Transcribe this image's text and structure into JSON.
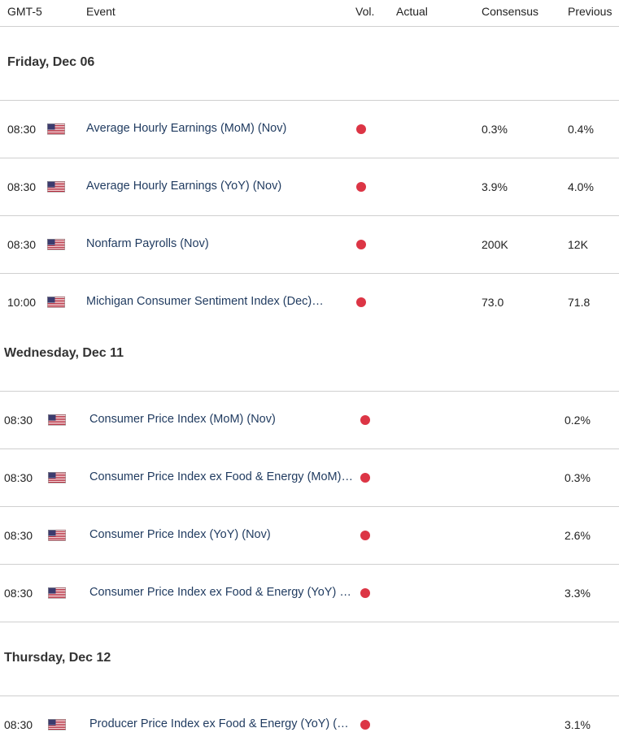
{
  "header": {
    "timezone": "GMT-5",
    "event": "Event",
    "vol": "Vol.",
    "actual": "Actual",
    "consensus": "Consensus",
    "previous": "Previous"
  },
  "colors": {
    "vol_high": "#dc3545",
    "event_text": "#1f3a5f",
    "divider": "#cfcfcf"
  },
  "days": [
    {
      "label": "Friday, Dec 06"
    },
    {
      "label": "Wednesday, Dec 11"
    },
    {
      "label": "Thursday, Dec 12"
    }
  ],
  "rows": [
    {
      "time": "08:30",
      "event": "Average Hourly Earnings (MoM) (Nov)",
      "actual": "",
      "consensus": "0.3%",
      "previous": "0.4%"
    },
    {
      "time": "08:30",
      "event": "Average Hourly Earnings (YoY) (Nov)",
      "actual": "",
      "consensus": "3.9%",
      "previous": "4.0%"
    },
    {
      "time": "08:30",
      "event": "Nonfarm Payrolls (Nov)",
      "actual": "",
      "consensus": "200K",
      "previous": "12K"
    },
    {
      "time": "10:00",
      "event": "Michigan Consumer Sentiment Index (Dec)…",
      "actual": "",
      "consensus": "73.0",
      "previous": "71.8"
    },
    {
      "time": "08:30",
      "event": "Consumer Price Index (MoM) (Nov)",
      "actual": "",
      "consensus": "",
      "previous": "0.2%"
    },
    {
      "time": "08:30",
      "event": "Consumer Price Index ex Food & Energy (MoM)…",
      "actual": "",
      "consensus": "",
      "previous": "0.3%"
    },
    {
      "time": "08:30",
      "event": "Consumer Price Index (YoY) (Nov)",
      "actual": "",
      "consensus": "",
      "previous": "2.6%"
    },
    {
      "time": "08:30",
      "event": "Consumer Price Index ex Food & Energy (YoY) …",
      "actual": "",
      "consensus": "",
      "previous": "3.3%"
    },
    {
      "time": "08:30",
      "event": "Producer Price Index ex Food & Energy (YoY) (…",
      "actual": "",
      "consensus": "",
      "previous": "3.1%"
    }
  ]
}
